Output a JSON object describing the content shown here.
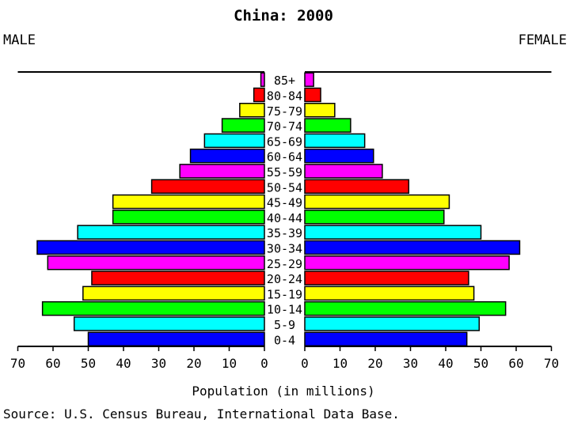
{
  "chart_data": {
    "type": "bar",
    "title": "China: 2000",
    "left_label": "MALE",
    "right_label": "FEMALE",
    "xlabel": "Population (in millions)",
    "source": "Source: U.S. Census Bureau, International Data Base.",
    "xlim": [
      0,
      70
    ],
    "tick_values": [
      0,
      10,
      20,
      30,
      40,
      50,
      60,
      70
    ],
    "tick_labels": [
      "0",
      "10",
      "20",
      "30",
      "40",
      "50",
      "60",
      "70"
    ],
    "categories": [
      "85+",
      "80-84",
      "75-79",
      "70-74",
      "65-69",
      "60-64",
      "55-59",
      "50-54",
      "45-49",
      "40-44",
      "35-39",
      "30-34",
      "25-29",
      "20-24",
      "15-19",
      "10-14",
      "5-9",
      "0-4"
    ],
    "colors": [
      "#ff00ff",
      "#ff0000",
      "#ffff00",
      "#00ff00",
      "#00ffff",
      "#0000ff",
      "#ff00ff",
      "#ff0000",
      "#ffff00",
      "#00ff00",
      "#00ffff",
      "#0000ff",
      "#ff00ff",
      "#ff0000",
      "#ffff00",
      "#00ff00",
      "#00ffff",
      "#0000ff"
    ],
    "series": [
      {
        "name": "MALE",
        "values": [
          1,
          3,
          7,
          12,
          17,
          21,
          24,
          32,
          43,
          43,
          53,
          64.5,
          61.5,
          49,
          51.5,
          63,
          54,
          50
        ]
      },
      {
        "name": "FEMALE",
        "values": [
          2.5,
          4.5,
          8.5,
          13,
          17,
          19.5,
          22,
          29.5,
          41,
          39.5,
          50,
          61,
          58,
          46.5,
          48,
          57,
          49.5,
          46
        ]
      }
    ],
    "grid": false,
    "legend": "none"
  }
}
